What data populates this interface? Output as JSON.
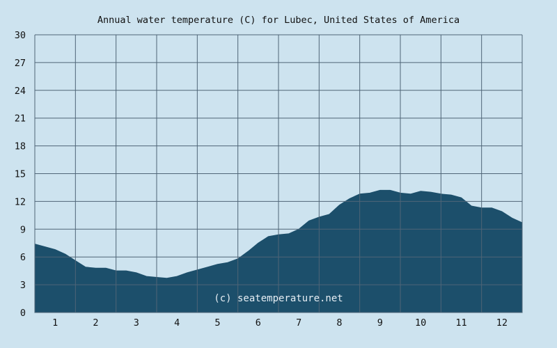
{
  "chart_data": {
    "type": "area",
    "title": "Annual water temperature (C) for Lubec, United States of America",
    "xlabel": "",
    "ylabel": "",
    "x_tick_labels": [
      "1",
      "2",
      "3",
      "4",
      "5",
      "6",
      "7",
      "8",
      "9",
      "10",
      "11",
      "12"
    ],
    "y_ticks": [
      0,
      3,
      6,
      9,
      12,
      15,
      18,
      21,
      24,
      27,
      30
    ],
    "ylim": [
      0,
      30
    ],
    "xlim": [
      0,
      12
    ],
    "grid": true,
    "watermark": "(c) seatemperature.net",
    "colors": {
      "background": "#cde3ef",
      "area_fill": "#1c4f6b",
      "grid_line": "#4f6577"
    },
    "series": [
      {
        "x": [
          0.0,
          0.25,
          0.5,
          0.75,
          1.0,
          1.25,
          1.5,
          1.75,
          2.0,
          2.25,
          2.5,
          2.75,
          3.0,
          3.25,
          3.5,
          3.75,
          4.0,
          4.25,
          4.5,
          4.75,
          5.0,
          5.25,
          5.5,
          5.75,
          6.0,
          6.25,
          6.5,
          6.75,
          7.0,
          7.25,
          7.5,
          7.75,
          8.0,
          8.25,
          8.5,
          8.75,
          9.0,
          9.25,
          9.5,
          9.75,
          10.0,
          10.25,
          10.5,
          10.75,
          11.0,
          11.25,
          11.5,
          11.75,
          12.0
        ],
        "values": [
          7.4,
          7.1,
          6.8,
          6.3,
          5.6,
          4.9,
          4.8,
          4.8,
          4.5,
          4.5,
          4.3,
          3.9,
          3.8,
          3.7,
          3.9,
          4.3,
          4.6,
          4.9,
          5.2,
          5.4,
          5.8,
          6.6,
          7.5,
          8.2,
          8.4,
          8.5,
          9.0,
          9.9,
          10.3,
          10.6,
          11.6,
          12.3,
          12.8,
          12.9,
          13.2,
          13.2,
          12.9,
          12.8,
          13.1,
          13.0,
          12.8,
          12.7,
          12.4,
          11.5,
          11.3,
          11.3,
          10.9,
          10.2,
          9.7
        ]
      }
    ]
  }
}
